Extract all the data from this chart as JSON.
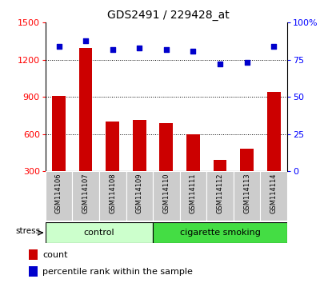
{
  "title": "GDS2491 / 229428_at",
  "samples": [
    "GSM114106",
    "GSM114107",
    "GSM114108",
    "GSM114109",
    "GSM114110",
    "GSM114111",
    "GSM114112",
    "GSM114113",
    "GSM114114"
  ],
  "counts": [
    905,
    1295,
    700,
    715,
    690,
    600,
    390,
    480,
    940
  ],
  "percentile_ranks": [
    84,
    88,
    82,
    83,
    82,
    81,
    72,
    73,
    84
  ],
  "group_labels": [
    "control",
    "cigarette smoking"
  ],
  "ctrl_color": "#ccffcc",
  "smoke_color": "#44dd44",
  "bar_color": "#cc0000",
  "dot_color": "#0000cc",
  "ylim_left": [
    300,
    1500
  ],
  "ylim_right": [
    0,
    100
  ],
  "yticks_left": [
    300,
    600,
    900,
    1200,
    1500
  ],
  "yticks_right": [
    0,
    25,
    50,
    75,
    100
  ],
  "ytick_right_labels": [
    "0",
    "25",
    "50",
    "75",
    "100%"
  ],
  "grid_vals": [
    600,
    900,
    1200
  ],
  "stress_label": "stress",
  "legend_count": "count",
  "legend_pct": "percentile rank within the sample",
  "background_color": "#ffffff",
  "tick_label_bg": "#cccccc",
  "plot_bg": "#ffffff"
}
